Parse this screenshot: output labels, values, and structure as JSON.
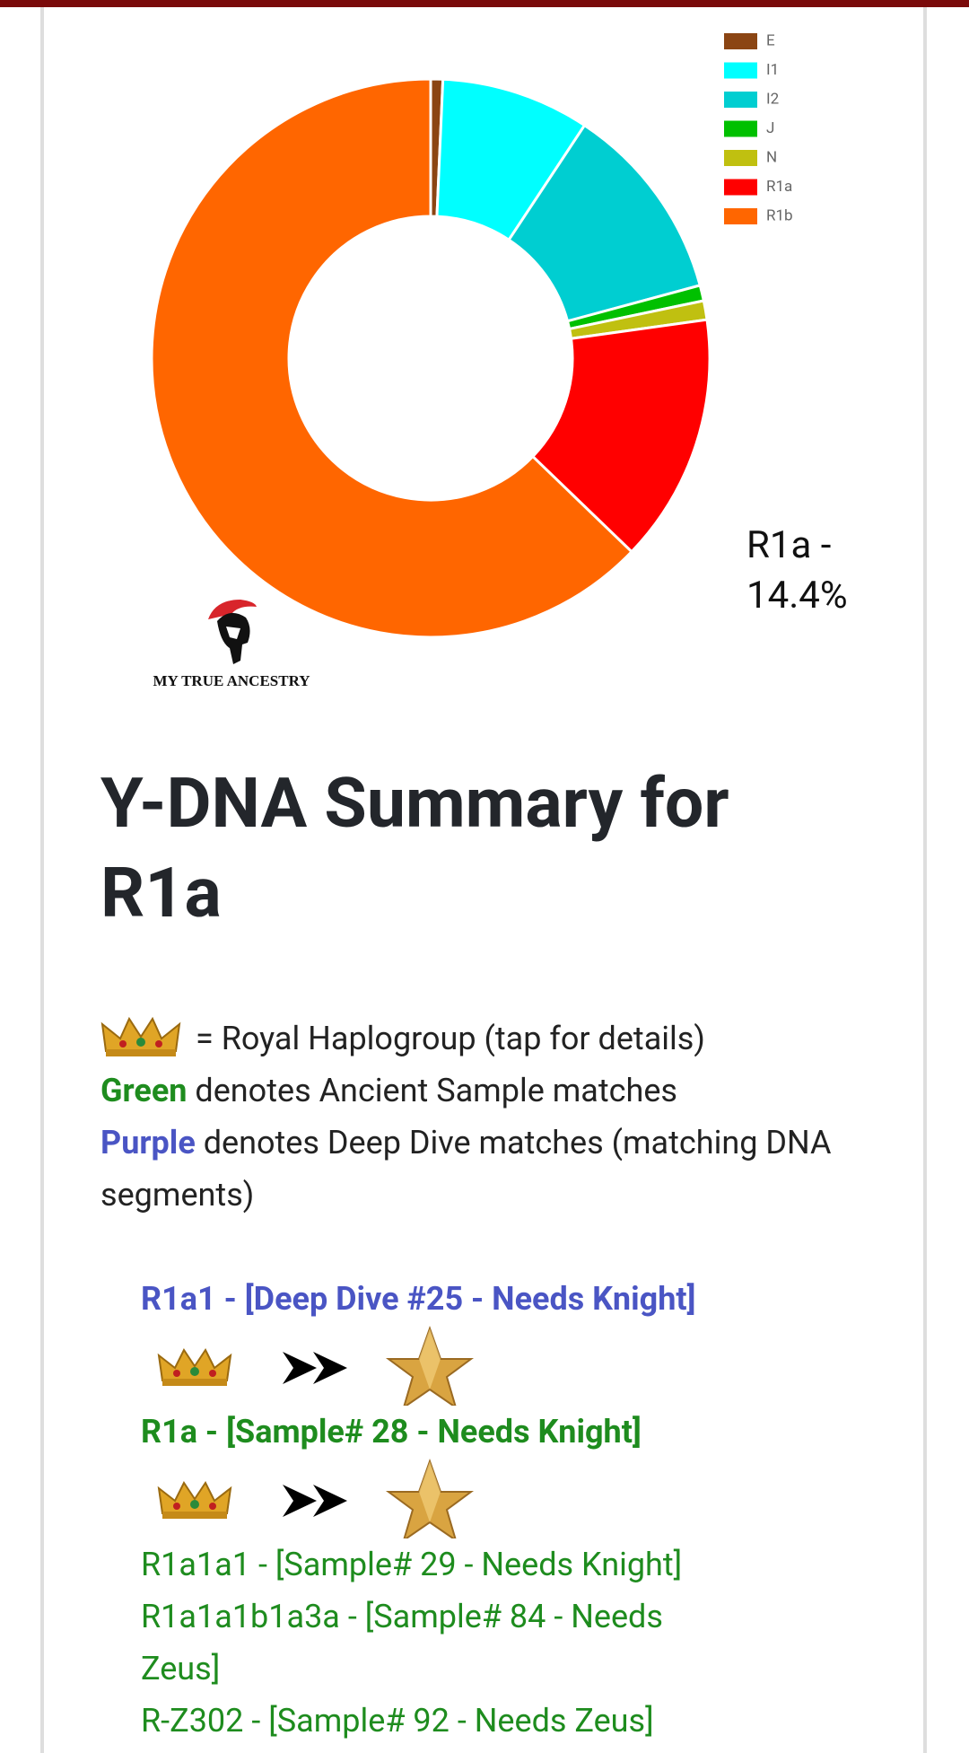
{
  "chart_data": {
    "type": "donut",
    "categories": [
      "E",
      "I1",
      "I2",
      "J",
      "N",
      "R1a",
      "R1b"
    ],
    "values": [
      0.7,
      8.6,
      11.5,
      0.9,
      1.1,
      14.4,
      62.8
    ],
    "colors": [
      "#8b4513",
      "#00ffff",
      "#00ced1",
      "#00c000",
      "#c0c010",
      "#ff0000",
      "#ff6600"
    ],
    "callout": "R1a - 14.4%",
    "legend": "top-right"
  },
  "logo": "MY TRUE ANCESTRY",
  "heading": "Y-DNA Summary for R1a",
  "intro": {
    "royal": "= Royal Haplogroup (tap for details)",
    "green_word": "Green",
    "green_text": "denotes Ancient Sample matches",
    "purple_word": "Purple",
    "purple_text": "denotes Deep Dive matches (matching DNA segments)"
  },
  "items": [
    {
      "label": "R1a1 - [Deep Dive #25 - Needs Knight]",
      "color": "#4a55c4",
      "bold": true,
      "icons": true
    },
    {
      "label": "R1a - [Sample# 28 - Needs Knight]",
      "color": "#1e8c1e",
      "bold": true,
      "icons": true
    },
    {
      "label": "R1a1a1 - [Sample# 29 - Needs Knight]",
      "color": "#1e8c1e",
      "bold": false,
      "icons": false
    },
    {
      "label": "R1a1a1b1a3a - [Sample# 84 - Needs Zeus]",
      "color": "#1e8c1e",
      "bold": false,
      "icons": false
    },
    {
      "label": "R-Z302 - [Sample# 92 - Needs Zeus]",
      "color": "#1e8c1e",
      "bold": false,
      "icons": false
    }
  ]
}
